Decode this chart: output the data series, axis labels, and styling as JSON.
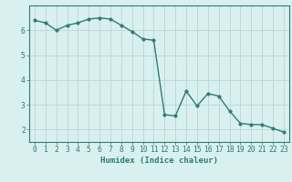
{
  "x": [
    0,
    1,
    2,
    3,
    4,
    5,
    6,
    7,
    8,
    9,
    10,
    11,
    12,
    13,
    14,
    15,
    16,
    17,
    18,
    19,
    20,
    21,
    22,
    23
  ],
  "y": [
    6.4,
    6.3,
    6.0,
    6.2,
    6.3,
    6.45,
    6.5,
    6.45,
    6.2,
    5.95,
    5.65,
    5.6,
    2.6,
    2.55,
    3.55,
    2.95,
    3.45,
    3.35,
    2.75,
    2.25,
    2.2,
    2.2,
    2.05,
    1.9
  ],
  "line_color": "#2e7d6e",
  "marker_color": "#2e7d6e",
  "bg_color": "#d9f0f0",
  "grid_color": "#c0d8d8",
  "axis_label_color": "#2e7d6e",
  "tick_color": "#2e7d6e",
  "xlabel": "Humidex (Indice chaleur)",
  "ylim": [
    1.5,
    7.0
  ],
  "xlim": [
    -0.5,
    23.5
  ],
  "yticks": [
    2,
    3,
    4,
    5,
    6
  ],
  "xticks": [
    0,
    1,
    2,
    3,
    4,
    5,
    6,
    7,
    8,
    9,
    10,
    11,
    12,
    13,
    14,
    15,
    16,
    17,
    18,
    19,
    20,
    21,
    22,
    23
  ],
  "xtick_labels": [
    "0",
    "1",
    "2",
    "3",
    "4",
    "5",
    "6",
    "7",
    "8",
    "9",
    "10",
    "11",
    "12",
    "13",
    "14",
    "15",
    "16",
    "17",
    "18",
    "19",
    "20",
    "21",
    "22",
    "23"
  ],
  "marker_size": 2.5,
  "line_width": 1.0,
  "font_size_xlabel": 6.5,
  "font_size_ticks": 5.8
}
